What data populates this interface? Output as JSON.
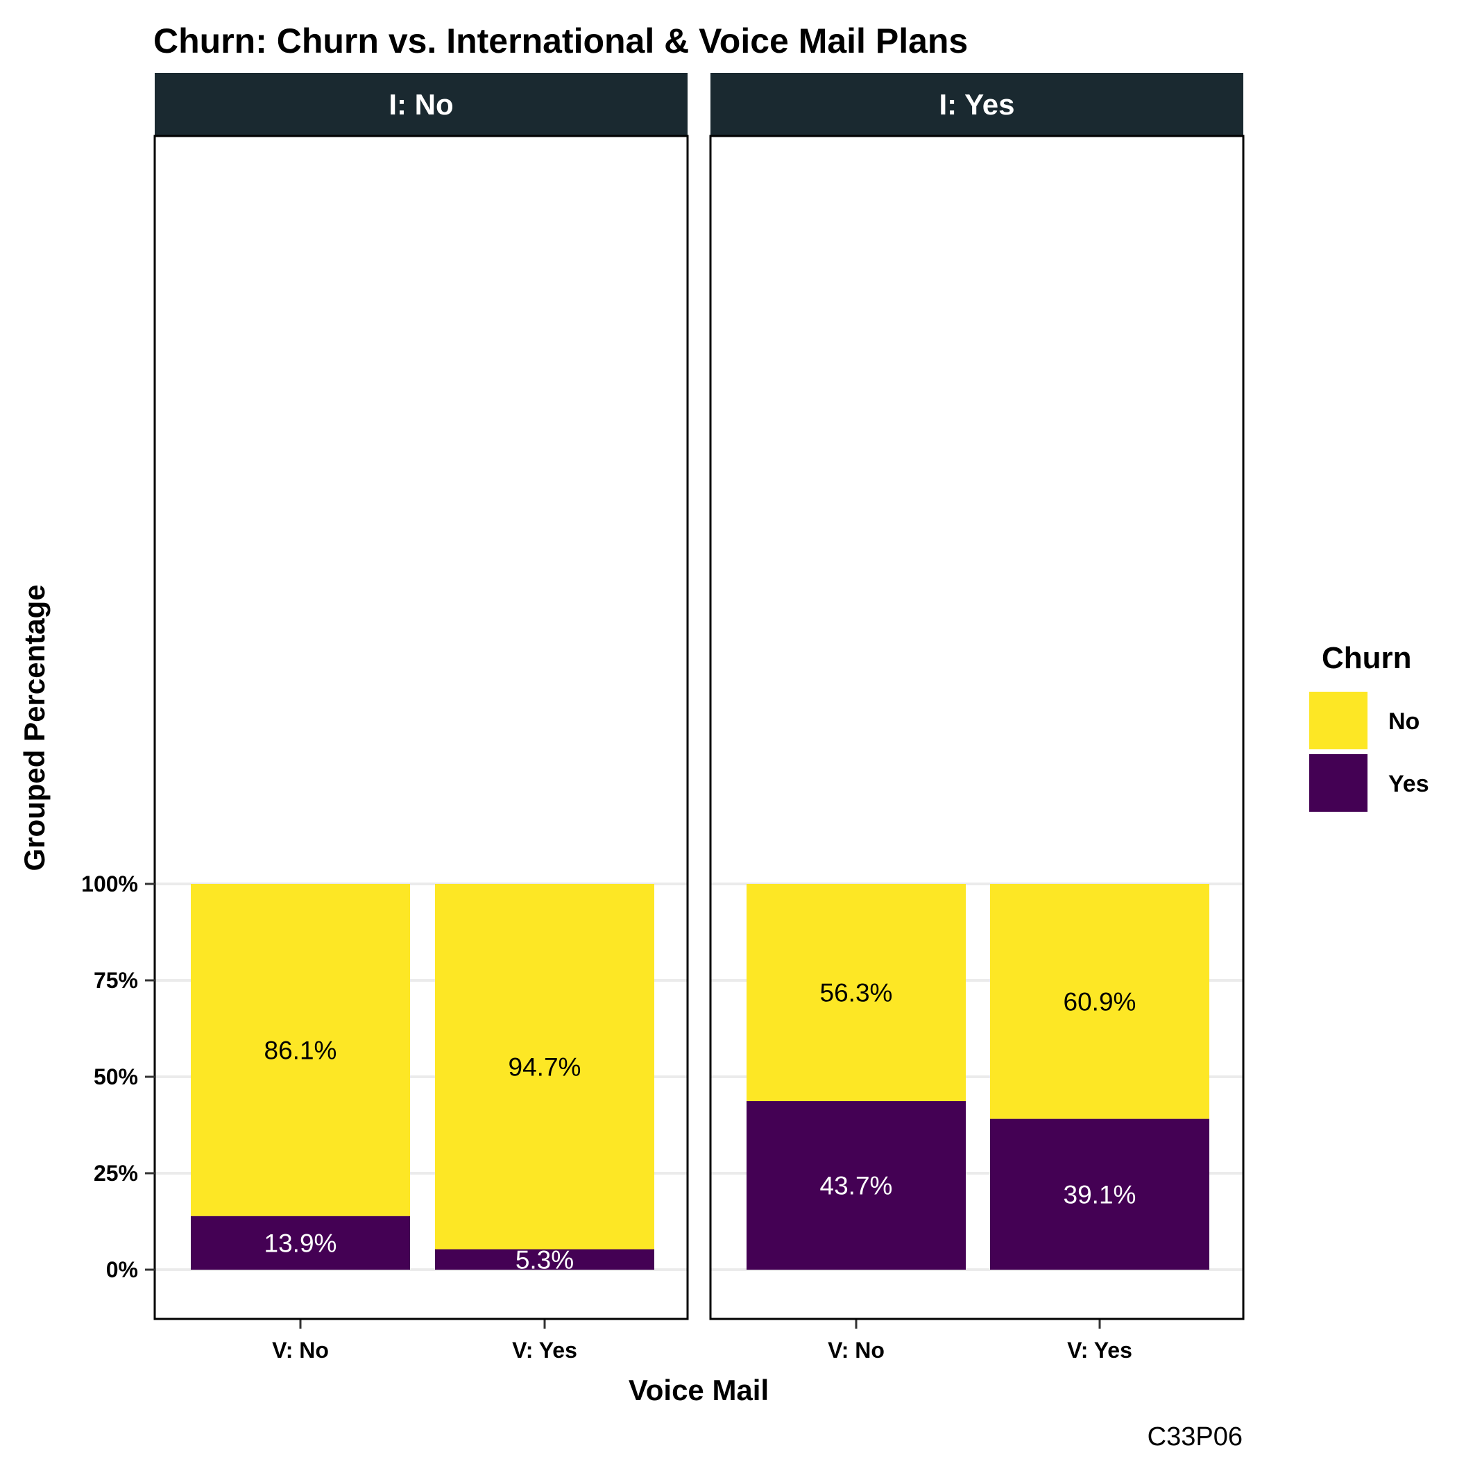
{
  "chart_data": {
    "type": "bar",
    "stacked": true,
    "title": "Churn: Churn vs. International & Voice Mail Plans",
    "xlabel": "Voice Mail",
    "ylabel": "Grouped Percentage",
    "caption": "C33P06",
    "ylim": [
      0,
      1
    ],
    "y_ticks": [
      "0%",
      "25%",
      "50%",
      "75%",
      "100%"
    ],
    "y_tick_values": [
      0,
      0.25,
      0.5,
      0.75,
      1
    ],
    "grid": true,
    "legend": {
      "title": "Churn",
      "position": "right",
      "entries": [
        {
          "label": "No",
          "color": "#fde725"
        },
        {
          "label": "Yes",
          "color": "#440154"
        }
      ]
    },
    "panels": [
      {
        "facet_label": "I: No",
        "categories": [
          "V: No",
          "V: Yes"
        ],
        "series": [
          {
            "name": "Yes",
            "values": [
              0.139,
              0.053
            ],
            "labels": [
              "13.9%",
              "5.3%"
            ]
          },
          {
            "name": "No",
            "values": [
              0.861,
              0.947
            ],
            "labels": [
              "86.1%",
              "94.7%"
            ]
          }
        ]
      },
      {
        "facet_label": "I: Yes",
        "categories": [
          "V: No",
          "V: Yes"
        ],
        "series": [
          {
            "name": "Yes",
            "values": [
              0.437,
              0.391
            ],
            "labels": [
              "43.7%",
              "39.1%"
            ]
          },
          {
            "name": "No",
            "values": [
              0.563,
              0.609
            ],
            "labels": [
              "56.3%",
              "60.9%"
            ]
          }
        ]
      }
    ],
    "colors": {
      "No": "#fde725",
      "Yes": "#440154",
      "strip_bg": "#1a2930",
      "grid": "#ebebeb",
      "label_on_no": "#000000",
      "label_on_yes": "#ffffff"
    }
  }
}
